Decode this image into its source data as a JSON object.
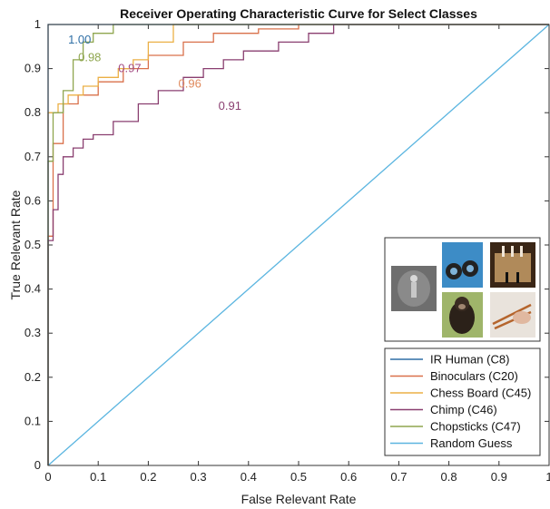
{
  "chart_data": {
    "type": "line",
    "title": "Receiver Operating Characteristic Curve for Select Classes",
    "xlabel": "False Relevant Rate",
    "ylabel": "True Relevant Rate",
    "xlim": [
      0,
      1
    ],
    "ylim": [
      0,
      1
    ],
    "xticks": [
      "0",
      "0.1",
      "0.2",
      "0.3",
      "0.4",
      "0.5",
      "0.6",
      "0.7",
      "0.8",
      "0.9",
      "1"
    ],
    "yticks": [
      "0",
      "0.1",
      "0.2",
      "0.3",
      "0.4",
      "0.5",
      "0.6",
      "0.7",
      "0.8",
      "0.9",
      "1"
    ],
    "grid": false,
    "legend_position": "bottom-right",
    "series": [
      {
        "name": "IR Human (C8)",
        "color": "#2f6fa5",
        "x": [
          0,
          0,
          1
        ],
        "y": [
          0,
          1,
          1
        ]
      },
      {
        "name": "Binoculars (C20)",
        "color": "#d9704a",
        "x": [
          0,
          0,
          0.01,
          0.01,
          0.03,
          0.03,
          0.06,
          0.06,
          0.1,
          0.1,
          0.15,
          0.15,
          0.2,
          0.2,
          0.27,
          0.27,
          0.33,
          0.33,
          0.42,
          0.42,
          0.5,
          0.5,
          1
        ],
        "y": [
          0,
          0.52,
          0.52,
          0.73,
          0.73,
          0.82,
          0.82,
          0.84,
          0.84,
          0.87,
          0.87,
          0.9,
          0.9,
          0.93,
          0.93,
          0.96,
          0.96,
          0.98,
          0.98,
          0.99,
          0.99,
          1,
          1
        ]
      },
      {
        "name": "Chess Board (C45)",
        "color": "#ebb046",
        "x": [
          0,
          0,
          0.02,
          0.02,
          0.04,
          0.04,
          0.07,
          0.07,
          0.1,
          0.1,
          0.14,
          0.14,
          0.17,
          0.17,
          0.2,
          0.2,
          0.25,
          0.25,
          0.28,
          1
        ],
        "y": [
          0,
          0.8,
          0.8,
          0.82,
          0.82,
          0.84,
          0.84,
          0.86,
          0.86,
          0.88,
          0.88,
          0.9,
          0.9,
          0.92,
          0.92,
          0.96,
          0.96,
          1,
          1,
          1
        ]
      },
      {
        "name": "Chimp (C46)",
        "color": "#8a3f70",
        "x": [
          0,
          0,
          0.01,
          0.01,
          0.02,
          0.02,
          0.03,
          0.03,
          0.05,
          0.05,
          0.07,
          0.07,
          0.09,
          0.09,
          0.13,
          0.13,
          0.18,
          0.18,
          0.22,
          0.22,
          0.27,
          0.27,
          0.31,
          0.31,
          0.35,
          0.35,
          0.39,
          0.39,
          0.46,
          0.46,
          0.52,
          0.52,
          0.57,
          0.57,
          1
        ],
        "y": [
          0,
          0.51,
          0.51,
          0.58,
          0.58,
          0.66,
          0.66,
          0.7,
          0.7,
          0.72,
          0.72,
          0.74,
          0.74,
          0.75,
          0.75,
          0.78,
          0.78,
          0.82,
          0.82,
          0.85,
          0.85,
          0.88,
          0.88,
          0.9,
          0.9,
          0.92,
          0.92,
          0.94,
          0.94,
          0.96,
          0.96,
          0.98,
          0.98,
          1,
          1
        ]
      },
      {
        "name": "Chopsticks (C47)",
        "color": "#8fa64f",
        "x": [
          0,
          0,
          0.01,
          0.01,
          0.03,
          0.03,
          0.05,
          0.05,
          0.07,
          0.07,
          0.09,
          0.09,
          0.13,
          0.13,
          1
        ],
        "y": [
          0,
          0.69,
          0.69,
          0.8,
          0.8,
          0.85,
          0.85,
          0.92,
          0.92,
          0.96,
          0.96,
          0.98,
          0.98,
          1,
          1
        ]
      },
      {
        "name": "Random Guess",
        "color": "#5bb5e0",
        "x": [
          0,
          1
        ],
        "y": [
          0,
          1
        ]
      }
    ],
    "annotations": [
      {
        "text": "1.00",
        "x": 0.04,
        "y": 0.965,
        "color": "#2f6fa5"
      },
      {
        "text": "0.98",
        "x": 0.06,
        "y": 0.925,
        "color": "#8fa64f"
      },
      {
        "text": "0.97",
        "x": 0.14,
        "y": 0.9,
        "color": "#a24a82"
      },
      {
        "text": "0.96",
        "x": 0.26,
        "y": 0.865,
        "color": "#e08a5d"
      },
      {
        "text": "0.91",
        "x": 0.34,
        "y": 0.815,
        "color": "#8a3f70"
      }
    ]
  }
}
